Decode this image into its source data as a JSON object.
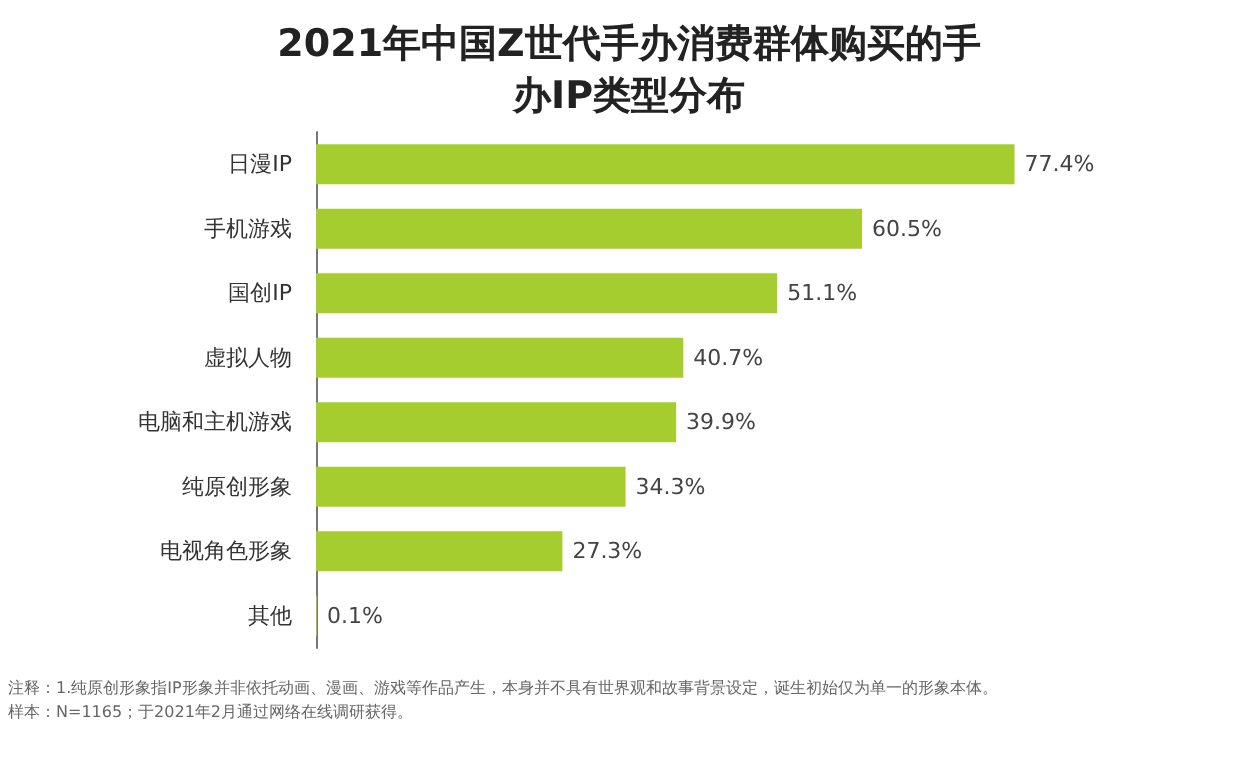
{
  "chart_data": {
    "type": "bar",
    "orientation": "horizontal",
    "title": "2021年中国Z世代手办消费群体购买的手办IP类型分布",
    "categories": [
      "日漫IP",
      "手机游戏",
      "国创IP",
      "虚拟人物",
      "电脑和主机游戏",
      "纯原创形象",
      "电视角色形象",
      "其他"
    ],
    "values": [
      77.4,
      60.5,
      51.1,
      40.7,
      39.9,
      34.3,
      27.3,
      0.1
    ],
    "value_labels": [
      "77.4%",
      "60.5%",
      "51.1%",
      "40.7%",
      "39.9%",
      "34.3%",
      "27.3%",
      "0.1%"
    ],
    "color": "#a5cd2f",
    "grid": false,
    "annotations": [
      "注释：1.纯原创形象指IP形象并非依托动画、漫画、游戏等作品产生，本身并不具有世界观和故事背景设定，诞生初始仅为单一的形象本体。",
      "样本：N=1165；于2021年2月通过网络在线调研获得。"
    ]
  }
}
